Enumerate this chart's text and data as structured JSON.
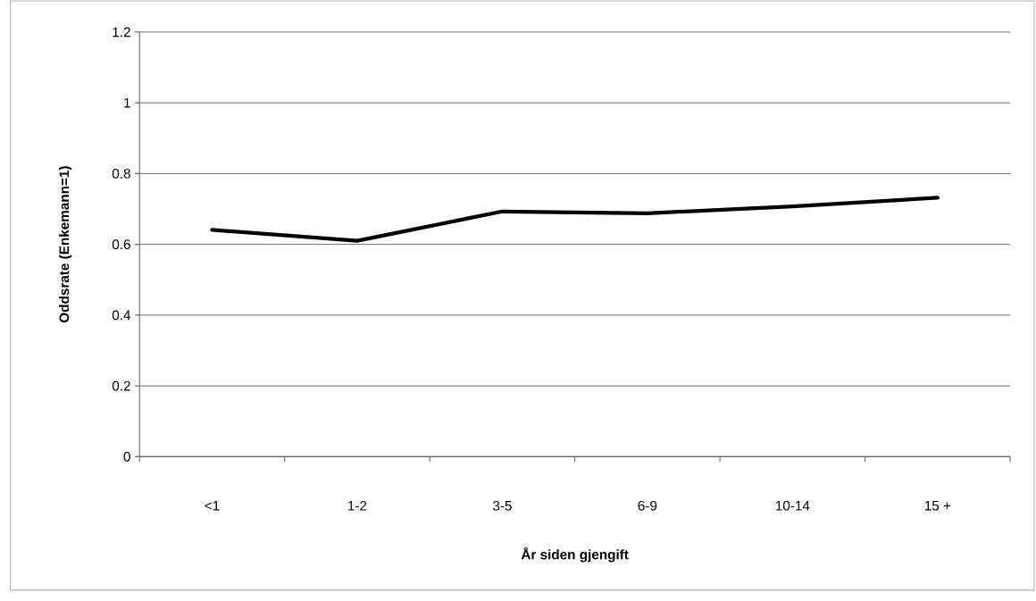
{
  "chart_data": {
    "type": "line",
    "xlabel": "År siden gjengift",
    "ylabel": "Oddsrate (Enkemann=1)",
    "categories": [
      "<1",
      "1-2",
      "3-5",
      "6-9",
      "10-14",
      "15 +"
    ],
    "series": [
      {
        "color": "#000000",
        "values": [
          0.641,
          0.61,
          0.693,
          0.688,
          0.707,
          0.732
        ]
      }
    ],
    "ylim": [
      0,
      1.2
    ],
    "yticks": [
      0,
      0.2,
      0.4,
      0.6,
      0.8,
      1,
      1.2
    ],
    "grid": "y",
    "marker": "none",
    "line_style": "solid"
  }
}
